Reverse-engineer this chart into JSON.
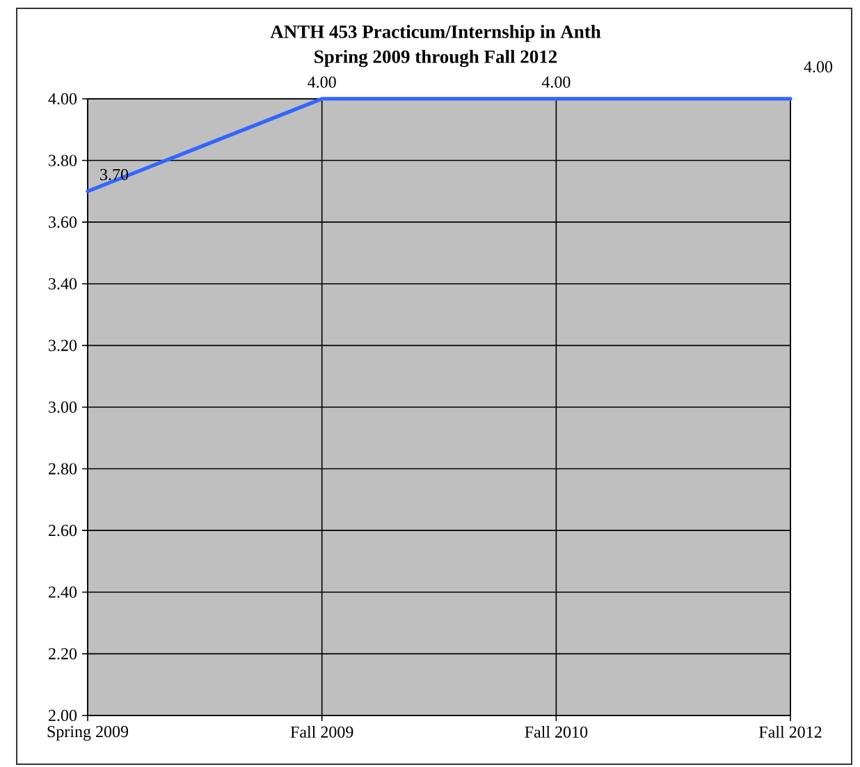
{
  "chart_data": {
    "type": "line",
    "title": "ANTH 453 Practicum/Internship in Anth",
    "subtitle": "Spring 2009 through Fall 2012",
    "categories": [
      "Spring 2009",
      "Fall 2009",
      "Fall 2010",
      "Fall 2012"
    ],
    "series": [
      {
        "color": "#3366ff",
        "values": [
          3.7,
          4.0,
          4.0,
          4.0
        ],
        "value_labels": [
          "3.70",
          "4.00",
          "4.00",
          "4.00"
        ]
      }
    ],
    "ylim": [
      2,
      4
    ],
    "yticks": [
      {
        "value": 2,
        "label": "2.00"
      },
      {
        "value": 2.2,
        "label": "2.20"
      },
      {
        "value": 2.4,
        "label": "2.40"
      },
      {
        "value": 2.6,
        "label": "2.60"
      },
      {
        "value": 2.8,
        "label": "2.80"
      },
      {
        "value": 3,
        "label": "3.00"
      },
      {
        "value": 3.2,
        "label": "3.20"
      },
      {
        "value": 3.4,
        "label": "3.40"
      },
      {
        "value": 3.6,
        "label": "3.60"
      },
      {
        "value": 3.8,
        "label": "3.80"
      },
      {
        "value": 4,
        "label": "4.00"
      }
    ],
    "grid": true,
    "marker": "none",
    "line_style": "solid"
  }
}
